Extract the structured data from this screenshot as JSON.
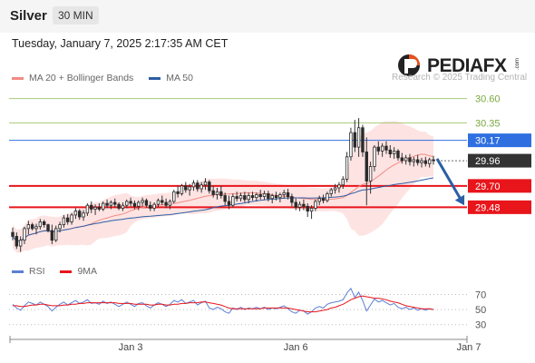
{
  "header": {
    "title": "Silver",
    "timeframe": "30 MIN"
  },
  "datetime": "Tuesday, January 7, 2025 2:17:35 AM CET",
  "legend": [
    {
      "label": "MA 20 + Bollinger Bands",
      "color": "#f28b82"
    },
    {
      "label": "MA 50",
      "color": "#2c5fa3"
    }
  ],
  "logo": {
    "text": "PEDIAFX",
    "suffix": ".com",
    "mark_color": "#e8501e"
  },
  "copyright": "Research © 2025 Trading Central",
  "levels": [
    {
      "value": 30.6,
      "label": "30.60",
      "kind": "resistance-minor",
      "color": "#a8c97a"
    },
    {
      "value": 30.35,
      "label": "30.35",
      "kind": "resistance-minor",
      "color": "#a8c97a"
    },
    {
      "value": 30.17,
      "label": "30.17",
      "kind": "pivot",
      "color": "#2f6fe0"
    },
    {
      "value": 29.96,
      "label": "29.96",
      "kind": "last-price",
      "color": "#333333"
    },
    {
      "value": 29.7,
      "label": "29.70",
      "kind": "support",
      "color": "#e8151b"
    },
    {
      "value": 29.48,
      "label": "29.48",
      "kind": "support",
      "color": "#e8151b"
    }
  ],
  "rsi_legend": [
    {
      "label": "RSI",
      "color": "#5b7fd6"
    },
    {
      "label": "9MA",
      "color": "#e8151b"
    }
  ],
  "chart_data": [
    {
      "type": "candlestick",
      "xlabels": [
        "Jan 3",
        "Jan 6",
        "Jan 7"
      ],
      "xlabel_index": [
        30,
        72,
        116
      ],
      "ylim": [
        28.95,
        30.7
      ],
      "last_price": 29.96,
      "arrow": {
        "from": 29.98,
        "to": 29.5,
        "direction": "down",
        "color": "#2c5fa3"
      },
      "candles": [
        [
          29.22,
          29.27,
          29.14,
          29.18
        ],
        [
          29.18,
          29.22,
          29.05,
          29.08
        ],
        [
          29.08,
          29.18,
          29.02,
          29.14
        ],
        [
          29.14,
          29.28,
          29.1,
          29.26
        ],
        [
          29.26,
          29.34,
          29.2,
          29.3
        ],
        [
          29.3,
          29.32,
          29.24,
          29.26
        ],
        [
          29.26,
          29.31,
          29.2,
          29.28
        ],
        [
          29.28,
          29.36,
          29.25,
          29.33
        ],
        [
          29.33,
          29.35,
          29.27,
          29.3
        ],
        [
          29.3,
          29.31,
          29.22,
          29.24
        ],
        [
          29.24,
          29.3,
          29.1,
          29.14
        ],
        [
          29.14,
          29.29,
          29.12,
          29.26
        ],
        [
          29.26,
          29.33,
          29.22,
          29.3
        ],
        [
          29.3,
          29.4,
          29.27,
          29.37
        ],
        [
          29.37,
          29.41,
          29.3,
          29.33
        ],
        [
          29.33,
          29.42,
          29.3,
          29.4
        ],
        [
          29.4,
          29.47,
          29.36,
          29.44
        ],
        [
          29.44,
          29.46,
          29.35,
          29.38
        ],
        [
          29.38,
          29.45,
          29.34,
          29.42
        ],
        [
          29.42,
          29.52,
          29.39,
          29.5
        ],
        [
          29.5,
          29.54,
          29.42,
          29.46
        ],
        [
          29.46,
          29.51,
          29.4,
          29.48
        ],
        [
          29.48,
          29.52,
          29.44,
          29.46
        ],
        [
          29.46,
          29.54,
          29.44,
          29.52
        ],
        [
          29.52,
          29.56,
          29.47,
          29.5
        ],
        [
          29.5,
          29.55,
          29.46,
          29.53
        ],
        [
          29.53,
          29.57,
          29.48,
          29.51
        ],
        [
          29.51,
          29.53,
          29.45,
          29.47
        ],
        [
          29.47,
          29.53,
          29.44,
          29.5
        ],
        [
          29.5,
          29.56,
          29.47,
          29.54
        ],
        [
          29.54,
          29.58,
          29.49,
          29.52
        ],
        [
          29.52,
          29.55,
          29.46,
          29.49
        ],
        [
          29.49,
          29.55,
          29.45,
          29.53
        ],
        [
          29.53,
          29.58,
          29.49,
          29.55
        ],
        [
          29.55,
          29.57,
          29.48,
          29.5
        ],
        [
          29.5,
          29.54,
          29.44,
          29.47
        ],
        [
          29.47,
          29.53,
          29.44,
          29.51
        ],
        [
          29.51,
          29.57,
          29.48,
          29.55
        ],
        [
          29.55,
          29.6,
          29.5,
          29.53
        ],
        [
          29.53,
          29.57,
          29.47,
          29.5
        ],
        [
          29.5,
          29.56,
          29.46,
          29.54
        ],
        [
          29.54,
          29.66,
          29.52,
          29.64
        ],
        [
          29.64,
          29.7,
          29.58,
          29.62
        ],
        [
          29.62,
          29.72,
          29.6,
          29.7
        ],
        [
          29.7,
          29.74,
          29.63,
          29.66
        ],
        [
          29.66,
          29.72,
          29.6,
          29.69
        ],
        [
          29.69,
          29.76,
          29.65,
          29.73
        ],
        [
          29.73,
          29.76,
          29.64,
          29.67
        ],
        [
          29.67,
          29.74,
          29.63,
          29.71
        ],
        [
          29.71,
          29.78,
          29.66,
          29.74
        ],
        [
          29.74,
          29.76,
          29.62,
          29.65
        ],
        [
          29.65,
          29.7,
          29.58,
          29.61
        ],
        [
          29.61,
          29.68,
          29.56,
          29.64
        ],
        [
          29.64,
          29.7,
          29.57,
          29.6
        ],
        [
          29.6,
          29.63,
          29.5,
          29.54
        ],
        [
          29.54,
          29.6,
          29.46,
          29.5
        ],
        [
          29.5,
          29.62,
          29.48,
          29.59
        ],
        [
          29.59,
          29.64,
          29.54,
          29.57
        ],
        [
          29.57,
          29.63,
          29.54,
          29.6
        ],
        [
          29.6,
          29.64,
          29.53,
          29.56
        ],
        [
          29.56,
          29.63,
          29.52,
          29.6
        ],
        [
          29.6,
          29.64,
          29.55,
          29.58
        ],
        [
          29.58,
          29.63,
          29.54,
          29.61
        ],
        [
          29.61,
          29.66,
          29.56,
          29.59
        ],
        [
          29.59,
          29.65,
          29.56,
          29.62
        ],
        [
          29.62,
          29.65,
          29.54,
          29.57
        ],
        [
          29.57,
          29.62,
          29.52,
          29.6
        ],
        [
          29.6,
          29.64,
          29.55,
          29.58
        ],
        [
          29.58,
          29.63,
          29.53,
          29.61
        ],
        [
          29.61,
          29.66,
          29.57,
          29.63
        ],
        [
          29.63,
          29.67,
          29.56,
          29.59
        ],
        [
          29.59,
          29.62,
          29.49,
          29.53
        ],
        [
          29.53,
          29.57,
          29.45,
          29.48
        ],
        [
          29.48,
          29.54,
          29.44,
          29.51
        ],
        [
          29.51,
          29.56,
          29.45,
          29.49
        ],
        [
          29.49,
          29.52,
          29.38,
          29.44
        ],
        [
          29.44,
          29.5,
          29.36,
          29.47
        ],
        [
          29.47,
          29.56,
          29.44,
          29.54
        ],
        [
          29.54,
          29.6,
          29.5,
          29.57
        ],
        [
          29.57,
          29.61,
          29.52,
          29.55
        ],
        [
          29.55,
          29.64,
          29.53,
          29.62
        ],
        [
          29.62,
          29.68,
          29.59,
          29.66
        ],
        [
          29.66,
          29.72,
          29.62,
          29.68
        ],
        [
          29.68,
          29.74,
          29.63,
          29.71
        ],
        [
          29.71,
          29.8,
          29.67,
          29.77
        ],
        [
          29.77,
          30.05,
          29.74,
          30.0
        ],
        [
          30.0,
          30.3,
          29.96,
          30.25
        ],
        [
          30.25,
          30.38,
          30.05,
          30.1
        ],
        [
          30.1,
          30.4,
          30.0,
          30.3
        ],
        [
          30.3,
          30.33,
          30.0,
          30.05
        ],
        [
          30.05,
          30.2,
          29.5,
          29.75
        ],
        [
          29.75,
          29.95,
          29.62,
          29.9
        ],
        [
          29.9,
          30.12,
          29.85,
          30.1
        ],
        [
          30.1,
          30.16,
          30.02,
          30.06
        ],
        [
          30.06,
          30.14,
          30.0,
          30.11
        ],
        [
          30.11,
          30.16,
          30.03,
          30.07
        ],
        [
          30.07,
          30.12,
          29.99,
          30.03
        ],
        [
          30.03,
          30.1,
          29.98,
          30.06
        ],
        [
          30.06,
          30.08,
          29.96,
          29.99
        ],
        [
          29.99,
          30.04,
          29.93,
          29.96
        ],
        [
          29.96,
          30.02,
          29.92,
          29.99
        ],
        [
          29.99,
          30.03,
          29.91,
          29.95
        ],
        [
          29.95,
          30.0,
          29.9,
          29.97
        ],
        [
          29.97,
          30.02,
          29.91,
          29.94
        ],
        [
          29.94,
          29.99,
          29.89,
          29.96
        ],
        [
          29.96,
          30.0,
          29.9,
          29.93
        ],
        [
          29.93,
          29.99,
          29.89,
          29.97
        ],
        [
          29.97,
          30.01,
          29.92,
          29.96
        ]
      ]
    },
    {
      "type": "line",
      "name": "RSI",
      "ylim": [
        20,
        85
      ],
      "yticks": [
        70,
        50,
        30
      ],
      "values": [
        57,
        52,
        49,
        55,
        60,
        58,
        56,
        60,
        57,
        54,
        48,
        53,
        57,
        60,
        56,
        59,
        62,
        58,
        60,
        63,
        58,
        59,
        57,
        61,
        58,
        60,
        57,
        54,
        57,
        60,
        57,
        54,
        58,
        59,
        55,
        52,
        56,
        59,
        57,
        54,
        57,
        62,
        60,
        63,
        58,
        60,
        62,
        56,
        59,
        61,
        52,
        50,
        53,
        51,
        47,
        45,
        52,
        50,
        53,
        50,
        52,
        51,
        53,
        51,
        53,
        50,
        52,
        51,
        53,
        55,
        51,
        47,
        45,
        49,
        48,
        44,
        47,
        52,
        54,
        52,
        57,
        59,
        60,
        61,
        63,
        72,
        78,
        66,
        73,
        62,
        48,
        56,
        64,
        60,
        62,
        59,
        56,
        58,
        53,
        51,
        53,
        50,
        52,
        49,
        51,
        49,
        51,
        50
      ],
      "ma": [
        55,
        55,
        54,
        54,
        55,
        56,
        56,
        57,
        57,
        56,
        55,
        55,
        55,
        56,
        56,
        57,
        57,
        58,
        58,
        59,
        59,
        59,
        59,
        59,
        59,
        59,
        59,
        58,
        58,
        58,
        58,
        57,
        57,
        57,
        57,
        56,
        56,
        57,
        57,
        56,
        56,
        57,
        57,
        58,
        58,
        59,
        59,
        59,
        60,
        60,
        59,
        58,
        57,
        56,
        54,
        52,
        51,
        51,
        51,
        51,
        51,
        51,
        51,
        51,
        52,
        52,
        52,
        52,
        52,
        52,
        52,
        51,
        50,
        49,
        48,
        47,
        47,
        47,
        48,
        49,
        50,
        52,
        53,
        55,
        57,
        60,
        63,
        65,
        67,
        68,
        67,
        66,
        65,
        65,
        64,
        63,
        61,
        60,
        59,
        57,
        55,
        54,
        53,
        52,
        51,
        51,
        51,
        50
      ]
    }
  ]
}
